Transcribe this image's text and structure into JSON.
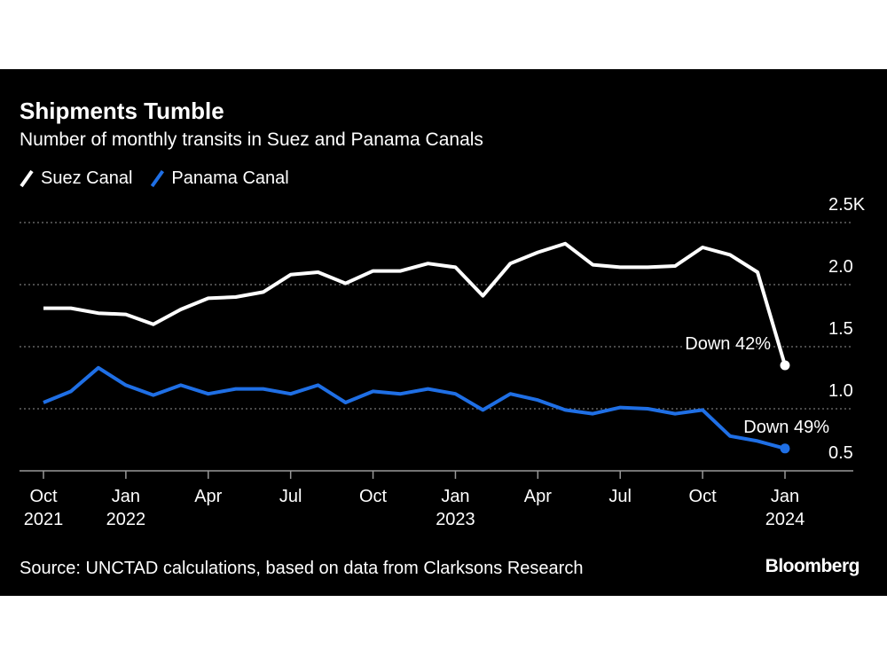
{
  "chart_data": {
    "type": "line",
    "title": "Shipments Tumble",
    "subtitle": "Number of monthly transits in Suez and Panama Canals",
    "categories": [
      "Oct\n2021",
      null,
      null,
      "Jan\n2022",
      null,
      null,
      "Apr",
      null,
      null,
      "Jul",
      null,
      null,
      "Oct",
      null,
      null,
      "Jan\n2023",
      null,
      null,
      "Apr",
      null,
      null,
      "Jul",
      null,
      null,
      "Oct",
      null,
      null,
      "Jan\n2024"
    ],
    "series": [
      {
        "name": "Suez Canal",
        "color": "#ffffff",
        "annotation": "Down 42%",
        "values": [
          1.81,
          1.81,
          1.77,
          1.76,
          1.68,
          1.8,
          1.89,
          1.9,
          1.94,
          2.08,
          2.1,
          2.01,
          2.11,
          2.11,
          2.17,
          2.14,
          1.91,
          2.17,
          2.26,
          2.33,
          2.16,
          2.14,
          2.14,
          2.15,
          2.3,
          2.24,
          2.1,
          1.35
        ]
      },
      {
        "name": "Panama Canal",
        "color": "#1f6fe5",
        "annotation": "Down 49%",
        "values": [
          1.05,
          1.14,
          1.33,
          1.19,
          1.11,
          1.19,
          1.12,
          1.16,
          1.16,
          1.12,
          1.19,
          1.05,
          1.14,
          1.12,
          1.16,
          1.12,
          0.99,
          1.12,
          1.07,
          0.99,
          0.96,
          1.01,
          1.0,
          0.96,
          0.99,
          0.78,
          0.74,
          0.68
        ]
      }
    ],
    "ylim": [
      0.5,
      2.5
    ],
    "yticks": [
      {
        "value": 0.5,
        "label": "0.5"
      },
      {
        "value": 1.0,
        "label": "1.0"
      },
      {
        "value": 1.5,
        "label": "1.5"
      },
      {
        "value": 2.0,
        "label": "2.0"
      },
      {
        "value": 2.5,
        "label": "2.5K"
      }
    ],
    "grid": true,
    "source": "Source: UNCTAD calculations, based on data from Clarksons Research",
    "brand": "Bloomberg"
  }
}
